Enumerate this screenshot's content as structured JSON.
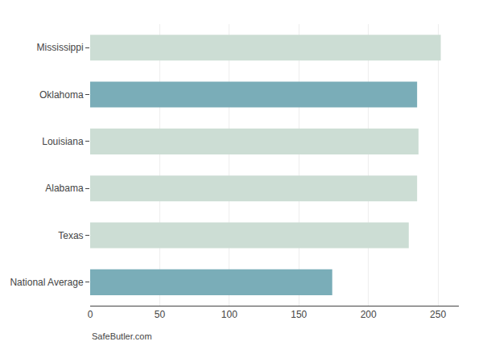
{
  "chart_data": {
    "type": "bar",
    "orientation": "horizontal",
    "categories": [
      "Mississippi",
      "Oklahoma",
      "Louisiana",
      "Alabama",
      "Texas",
      "National Average"
    ],
    "values": [
      252,
      235,
      236,
      235,
      229,
      174
    ],
    "colors": [
      "#ccddd4",
      "#7aadb8",
      "#ccddd4",
      "#ccddd4",
      "#ccddd4",
      "#7aadb8"
    ],
    "xlim": [
      0,
      265
    ],
    "xticks": [
      0,
      50,
      100,
      150,
      200,
      250
    ],
    "grid": true,
    "annotations": [
      "SafeButler.com"
    ]
  }
}
